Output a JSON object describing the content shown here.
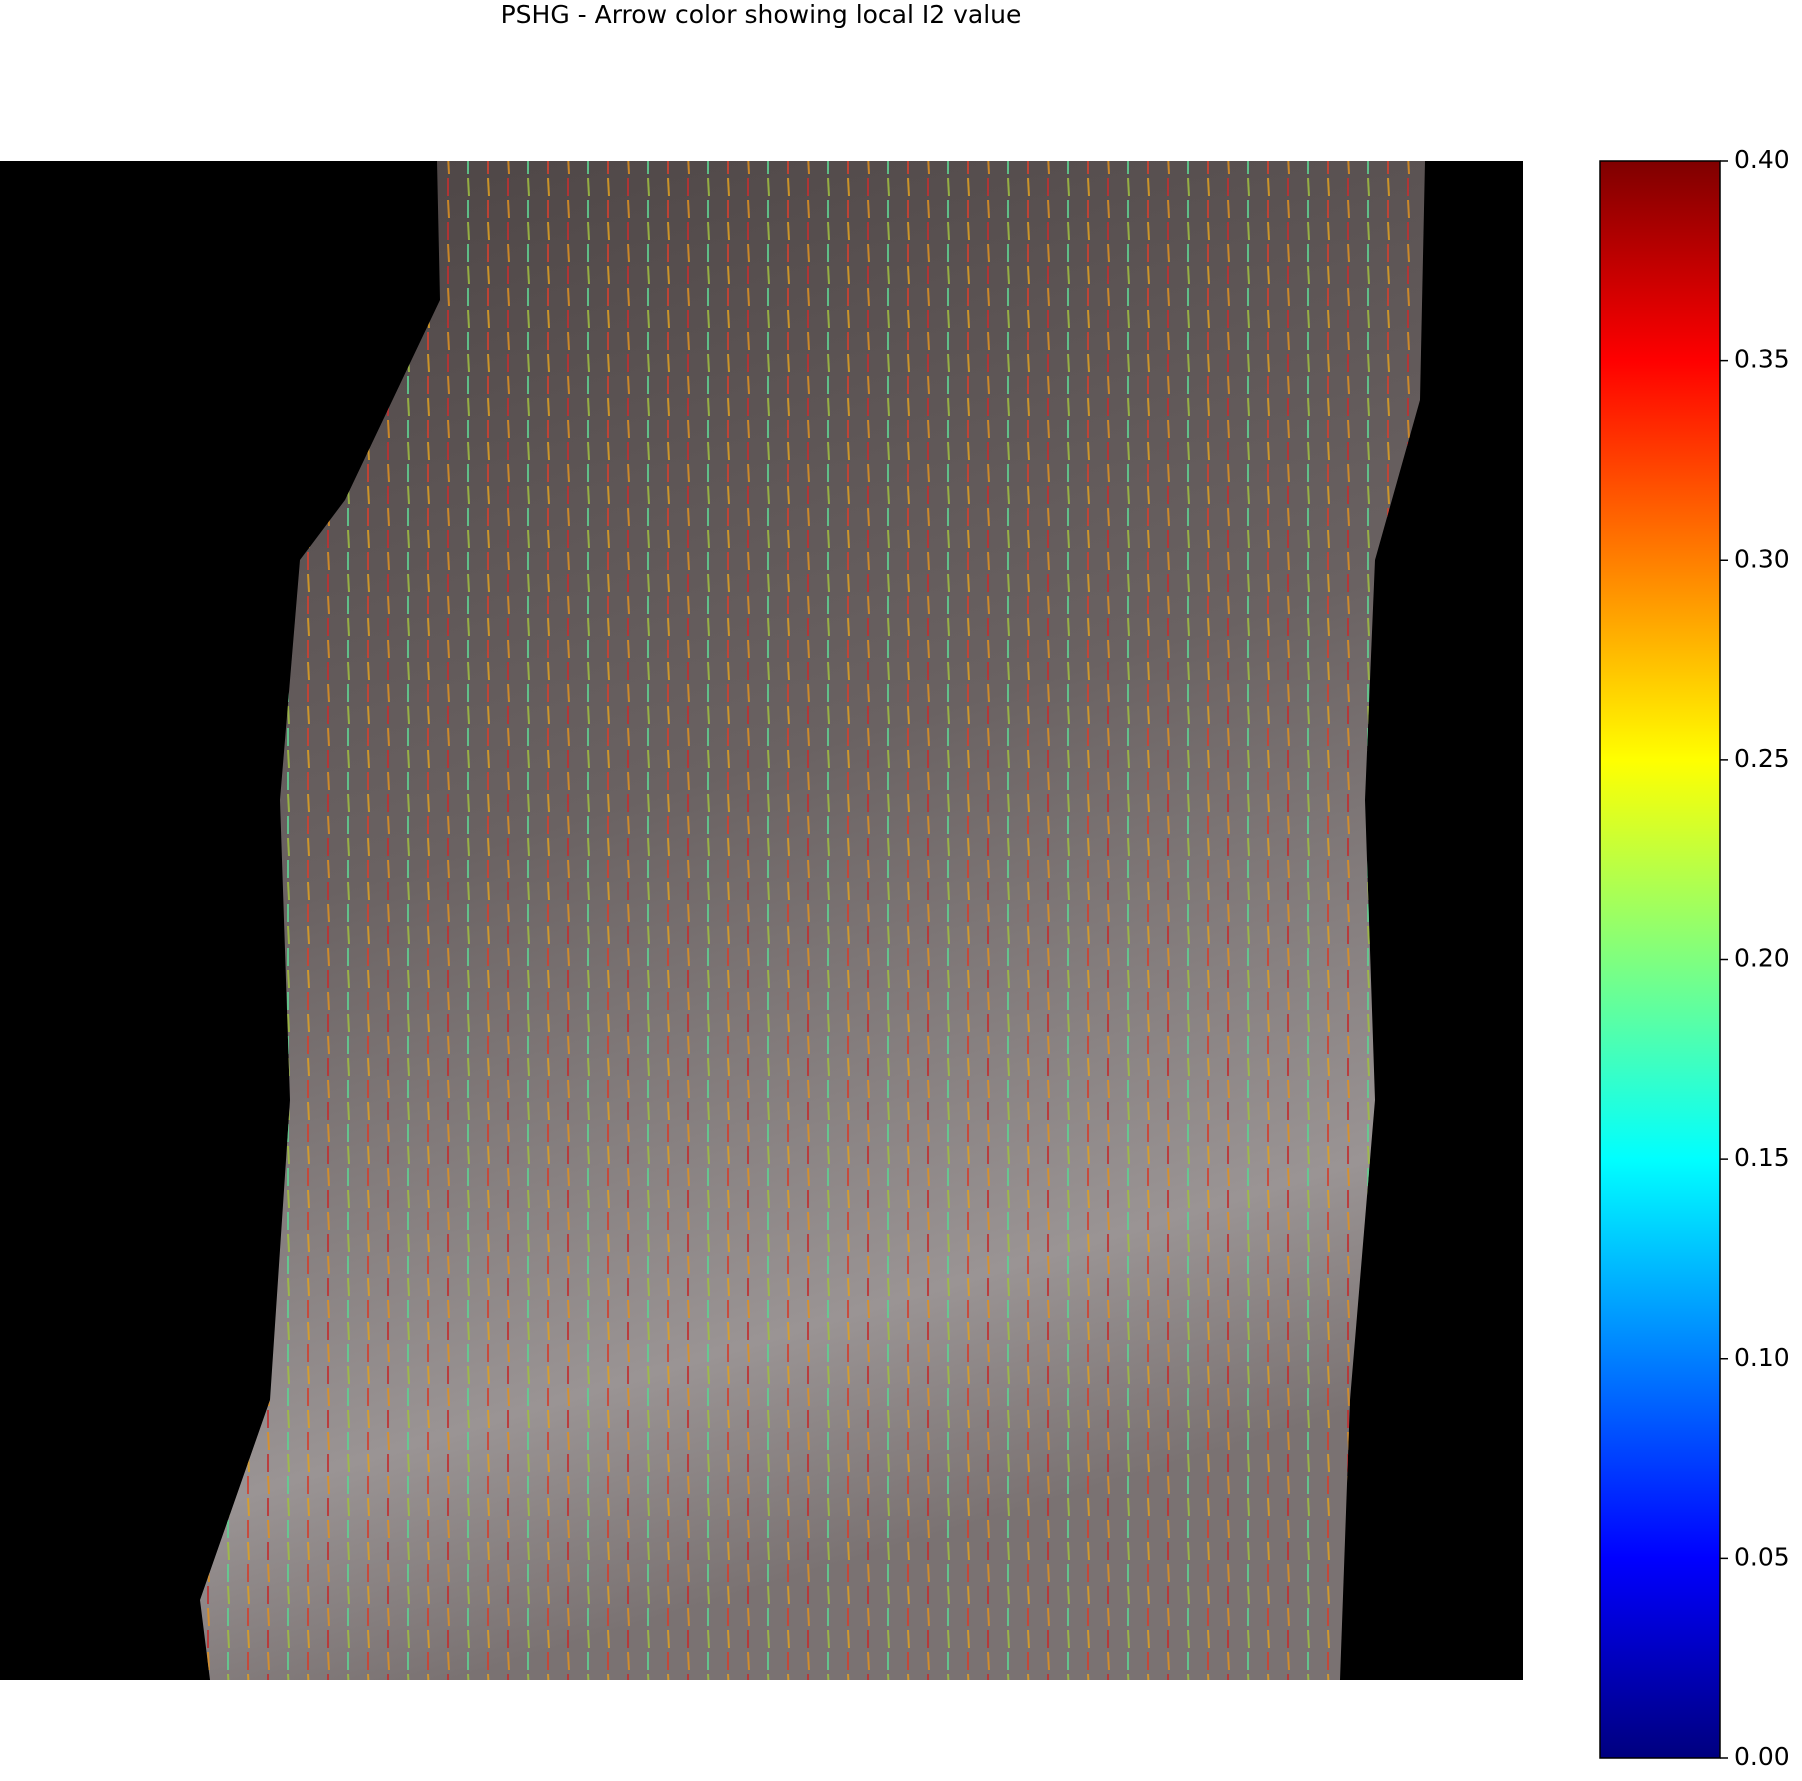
{
  "chart_data": {
    "type": "quiver",
    "title": "PSHG - Arrow color showing local I2 value",
    "colorbar": {
      "colormap": "jet",
      "colors": [
        "#00007f",
        "#0000ff",
        "#007fff",
        "#00ffff",
        "#7fff7f",
        "#ffff00",
        "#ff7f00",
        "#ff0000",
        "#7f0000"
      ],
      "clim": [
        0,
        0.4
      ],
      "ticks": [
        {
          "value": 0,
          "label": "0.00"
        },
        0.05,
        {
          "value": 0.1,
          "label": "0.10"
        },
        0.15,
        {
          "value": 0.2,
          "label": "0.20"
        },
        0.25,
        {
          "value": 0.3,
          "label": "0.30"
        },
        0.35,
        {
          "value": 0.4,
          "label": "0.40"
        }
      ]
    }
  }
}
